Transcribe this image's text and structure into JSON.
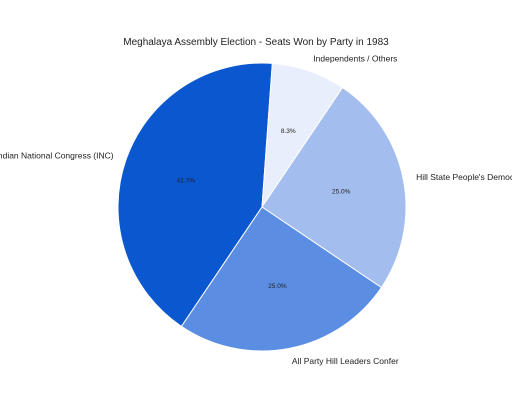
{
  "chart_data": {
    "type": "pie",
    "title": "Meghalaya Assembly Election - Seats Won by Party in 1983",
    "categories": [
      "Indian National Congress (INC)",
      "Independents / Others",
      "Hill State People's Democratic Party (HSPDP)",
      "All Party Hill Leaders Confer"
    ],
    "values": [
      41.7,
      8.3,
      25.0,
      25.0
    ],
    "value_labels": [
      "41.7%",
      "8.3%",
      "25.0%",
      "25.0%"
    ],
    "colors": [
      "#0b57d0",
      "#e8eefb",
      "#a3bdee",
      "#5b8ee3"
    ],
    "legend": "none"
  }
}
